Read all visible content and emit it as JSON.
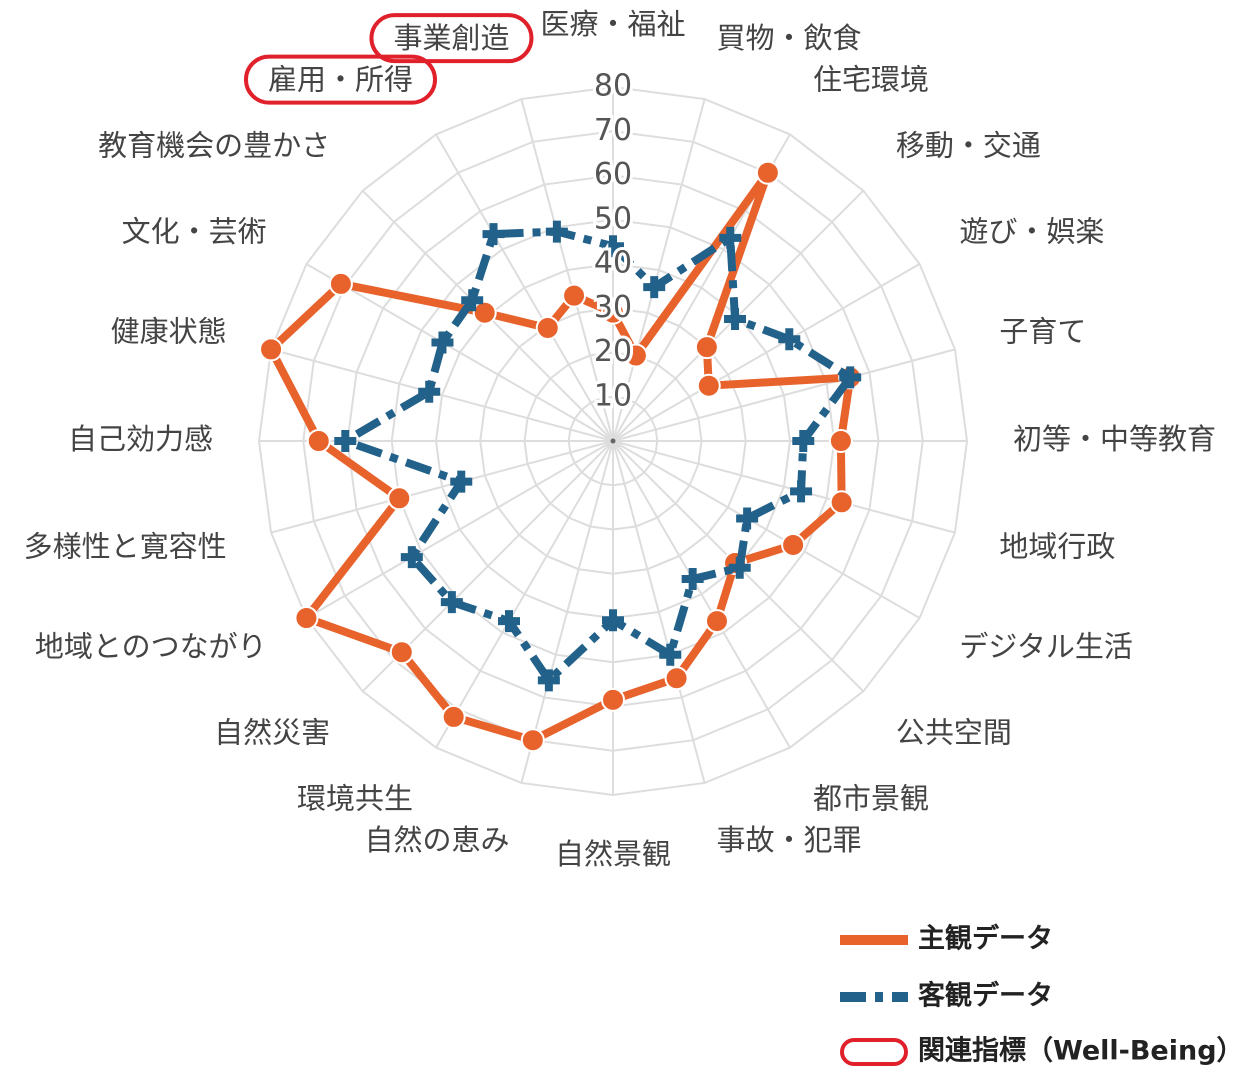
{
  "chart_data": {
    "type": "radar",
    "categories": [
      "医療・福祉",
      "買物・飲食",
      "住宅環境",
      "移動・交通",
      "遊び・娯楽",
      "子育て",
      "初等・中等教育",
      "地域行政",
      "デジタル生活",
      "公共空間",
      "都市景観",
      "事故・犯罪",
      "自然景観",
      "自然の恵み",
      "環境共生",
      "自然災害",
      "地域とのつながり",
      "多様性と寛容性",
      "自己効力感",
      "健康状態",
      "文化・芸術",
      "教育機会の豊かさ",
      "雇用・所得",
      "事業創造"
    ],
    "series": [
      {
        "name": "主観データ",
        "color": "#e8622c",
        "values": [
          29,
          20,
          70,
          30,
          25,
          55.5,
          51.5,
          53.5,
          47,
          39,
          47,
          55.5,
          58.5,
          70,
          72,
          67.5,
          80,
          50,
          66.5,
          80,
          71,
          41,
          29.5,
          34
        ]
      },
      {
        "name": "客観データ",
        "color": "#22618a",
        "values": [
          44,
          36,
          53,
          39,
          46,
          55.5,
          43,
          44,
          35,
          40.5,
          36,
          50,
          40.5,
          56,
          47,
          51.5,
          52.5,
          35.5,
          60.5,
          43,
          44.5,
          45,
          54,
          49
        ]
      }
    ],
    "ylim": [
      0,
      80
    ],
    "yticks": [
      10,
      20,
      30,
      40,
      50,
      60,
      70,
      80
    ],
    "grid": true,
    "highlight": {
      "name": "関連指標（Well-Being）",
      "color": "#e0202a",
      "categories": [
        22,
        23
      ]
    },
    "legend": "bottom-right"
  }
}
